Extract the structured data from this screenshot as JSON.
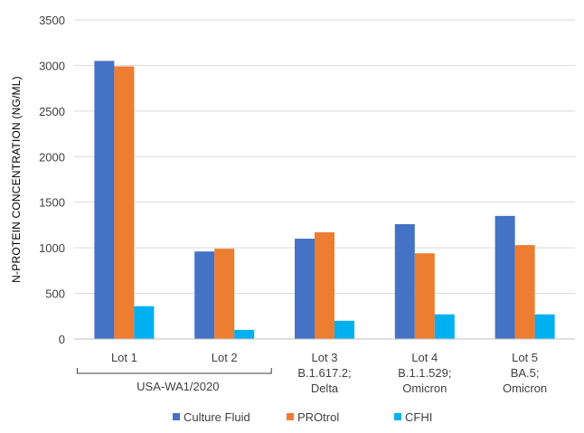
{
  "chart_data": {
    "type": "bar",
    "ylabel": "N-PROTEIN CONCENTRATION (NG/ML)",
    "xlabel": "",
    "title": "",
    "ylim": [
      0,
      3500
    ],
    "yticks": [
      0,
      500,
      1000,
      1500,
      2000,
      2500,
      3000,
      3500
    ],
    "grid": true,
    "legend_position": "bottom",
    "categories": [
      {
        "lines": [
          "Lot 1"
        ]
      },
      {
        "lines": [
          "Lot 2"
        ]
      },
      {
        "lines": [
          "Lot 3",
          "B.1.617.2;",
          "Delta"
        ]
      },
      {
        "lines": [
          "Lot 4",
          "B.1.1.529;",
          "Omicron"
        ]
      },
      {
        "lines": [
          "Lot 5",
          "BA.5;",
          "Omicron"
        ]
      }
    ],
    "group_label": {
      "text": "USA-WA1/2020",
      "spans": [
        0,
        1
      ]
    },
    "series": [
      {
        "name": "Culture Fluid",
        "color": "#4472C4",
        "values": [
          3050,
          960,
          1100,
          1260,
          1350
        ]
      },
      {
        "name": "PROtrol",
        "color": "#ED7D31",
        "values": [
          2990,
          990,
          1170,
          940,
          1030
        ]
      },
      {
        "name": "CFHI",
        "color": "#00B0F0",
        "values": [
          360,
          100,
          200,
          270,
          270
        ]
      }
    ]
  }
}
